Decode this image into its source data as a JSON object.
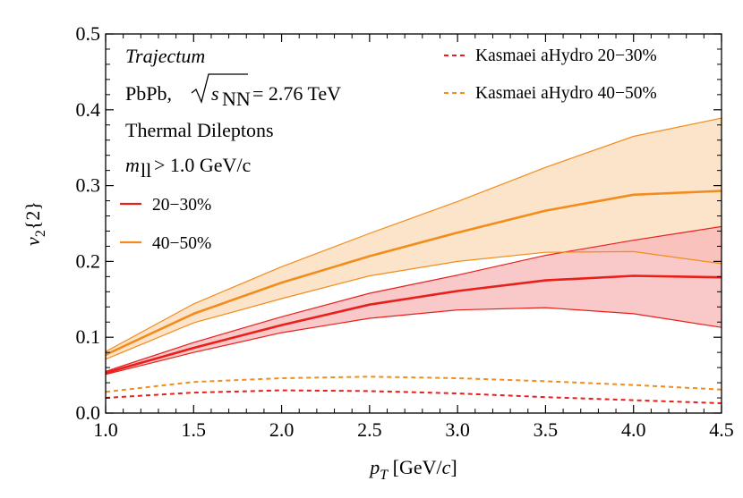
{
  "chart_data": {
    "type": "line",
    "xlabel": "p_T [GeV/c]",
    "ylabel": "v_2{2}",
    "xlim": [
      1.0,
      4.5
    ],
    "ylim": [
      0.0,
      0.5
    ],
    "x_ticks": [
      "1.0",
      "1.5",
      "2.0",
      "2.5",
      "3.0",
      "3.5",
      "4.0",
      "4.5"
    ],
    "y_ticks": [
      "0.0",
      "0.1",
      "0.2",
      "0.3",
      "0.4",
      "0.5"
    ],
    "grid": false,
    "annotations": {
      "model": "Trajectum",
      "system_prefix": "PbPb,",
      "system_energy": "= 2.76 TeV",
      "probe": "Thermal Dileptons",
      "mass_cut": "> 1.0 GeV/c"
    },
    "legend_placement": "left and top-right",
    "colors": {
      "c2030": "#e8201b",
      "c4050": "#f28c1c",
      "band2030": "#f7b9b9",
      "band4050": "#fbd9b5"
    },
    "series": [
      {
        "name": "20−30%",
        "style": "solid",
        "color": "#e8201b",
        "x": [
          1.0,
          1.5,
          2.0,
          2.5,
          3.0,
          3.5,
          4.0,
          4.5
        ],
        "values": [
          0.053,
          0.086,
          0.116,
          0.143,
          0.161,
          0.175,
          0.181,
          0.179
        ],
        "lower": [
          0.051,
          0.08,
          0.106,
          0.125,
          0.136,
          0.139,
          0.131,
          0.113
        ],
        "upper": [
          0.055,
          0.093,
          0.127,
          0.158,
          0.182,
          0.208,
          0.228,
          0.246
        ]
      },
      {
        "name": "40−50%",
        "style": "solid",
        "color": "#f28c1c",
        "x": [
          1.0,
          1.5,
          2.0,
          2.5,
          3.0,
          3.5,
          4.0,
          4.5
        ],
        "values": [
          0.077,
          0.131,
          0.172,
          0.207,
          0.238,
          0.267,
          0.288,
          0.293
        ],
        "lower": [
          0.071,
          0.119,
          0.151,
          0.181,
          0.2,
          0.212,
          0.213,
          0.197
        ],
        "upper": [
          0.081,
          0.144,
          0.193,
          0.237,
          0.279,
          0.324,
          0.365,
          0.389
        ]
      },
      {
        "name": "Kasmaei aHydro 20−30%",
        "style": "dashed",
        "color": "#e8201b",
        "x": [
          1.0,
          1.5,
          2.0,
          2.5,
          3.0,
          3.5,
          4.0,
          4.5
        ],
        "values": [
          0.02,
          0.027,
          0.03,
          0.029,
          0.026,
          0.021,
          0.017,
          0.013
        ]
      },
      {
        "name": "Kasmaei aHydro 40−50%",
        "style": "dashed",
        "color": "#f28c1c",
        "x": [
          1.0,
          1.5,
          2.0,
          2.5,
          3.0,
          3.5,
          4.0,
          4.5
        ],
        "values": [
          0.028,
          0.041,
          0.046,
          0.048,
          0.046,
          0.042,
          0.037,
          0.031
        ]
      }
    ]
  }
}
